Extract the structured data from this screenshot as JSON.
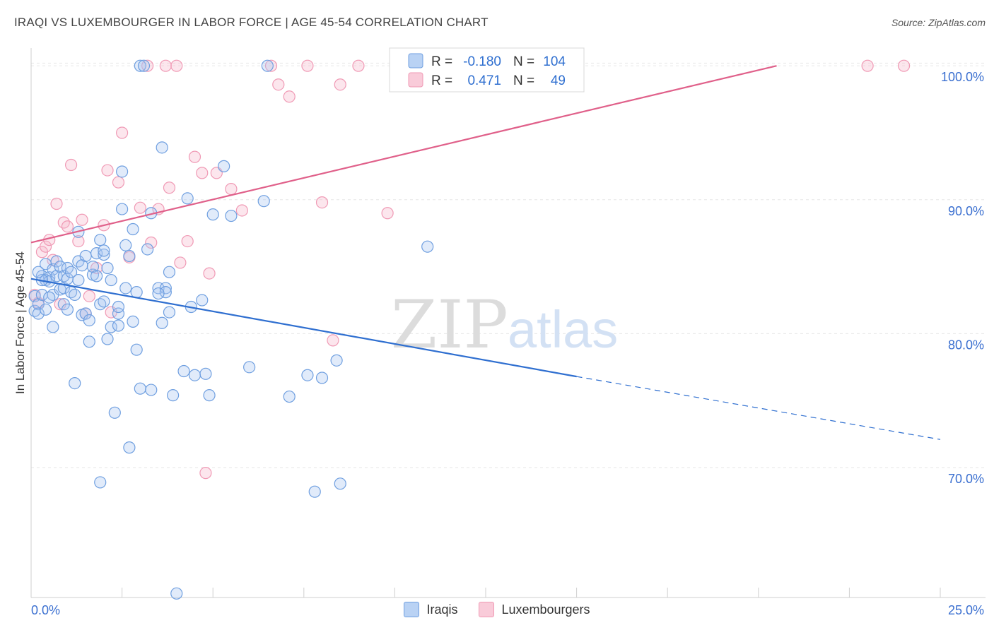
{
  "header": {
    "title": "IRAQI VS LUXEMBOURGER IN LABOR FORCE | AGE 45-54 CORRELATION CHART",
    "source": "Source: ZipAtlas.com"
  },
  "watermark": {
    "zip": "ZIP",
    "atlas": "atlas"
  },
  "legend_box": {
    "rows": [
      {
        "r_label": "R =",
        "r_value": "-0.180",
        "n_label": "N =",
        "n_value": "104"
      },
      {
        "r_label": "R =",
        "r_value": "0.471",
        "n_label": "N =",
        "n_value": "49"
      }
    ]
  },
  "chart_data": {
    "type": "scatter",
    "title": "IRAQI VS LUXEMBOURGER IN LABOR FORCE | AGE 45-54 CORRELATION CHART",
    "xlabel": "",
    "ylabel": "In Labor Force | Age 45-54",
    "xlim": [
      0,
      25
    ],
    "ylim": [
      60.3,
      100.8
    ],
    "x_tick_labels": [
      "0.0%",
      "25.0%"
    ],
    "y_ticks": [
      70,
      80,
      90,
      100
    ],
    "y_tick_labels": [
      "70.0%",
      "80.0%",
      "90.0%",
      "100.0%"
    ],
    "grid": true,
    "legend_position": "bottom",
    "colors": {
      "iraqis": "#6f9fe0",
      "iraqis_line": "#2f6fd0",
      "luxembourgers": "#f09ab5",
      "luxembourgers_line": "#e0608a",
      "tick_text": "#3a6fd0"
    },
    "series": [
      {
        "name": "Iraqis",
        "r": -0.18,
        "n": 104,
        "trend": {
          "x0": 0,
          "y0": 84.1,
          "x1": 15,
          "y1": 76.8,
          "dash_x1": 25,
          "dash_y1": 72.1
        },
        "points": [
          [
            0.1,
            82.8
          ],
          [
            0.1,
            81.7
          ],
          [
            0.2,
            82.2
          ],
          [
            0.2,
            81.5
          ],
          [
            0.3,
            82.9
          ],
          [
            0.3,
            84.3
          ],
          [
            0.4,
            84.0
          ],
          [
            0.4,
            85.2
          ],
          [
            0.5,
            84.2
          ],
          [
            0.5,
            83.9
          ],
          [
            0.6,
            84.8
          ],
          [
            0.6,
            82.9
          ],
          [
            0.7,
            84.3
          ],
          [
            0.7,
            85.4
          ],
          [
            0.8,
            83.3
          ],
          [
            0.8,
            85.0
          ],
          [
            0.9,
            84.3
          ],
          [
            0.9,
            83.4
          ],
          [
            1.0,
            84.9
          ],
          [
            1.0,
            84.1
          ],
          [
            1.1,
            83.1
          ],
          [
            1.1,
            84.6
          ],
          [
            1.2,
            82.9
          ],
          [
            1.3,
            87.6
          ],
          [
            1.3,
            85.4
          ],
          [
            1.4,
            81.4
          ],
          [
            1.4,
            85.1
          ],
          [
            1.5,
            81.5
          ],
          [
            1.5,
            85.8
          ],
          [
            1.6,
            79.4
          ],
          [
            1.6,
            81.0
          ],
          [
            1.7,
            84.4
          ],
          [
            1.7,
            85.0
          ],
          [
            1.8,
            84.3
          ],
          [
            1.8,
            86.0
          ],
          [
            1.9,
            82.2
          ],
          [
            1.9,
            87.0
          ],
          [
            2.0,
            85.9
          ],
          [
            2.0,
            86.2
          ],
          [
            2.1,
            79.6
          ],
          [
            2.1,
            84.9
          ],
          [
            2.2,
            80.5
          ],
          [
            2.2,
            84.0
          ],
          [
            2.3,
            74.1
          ],
          [
            2.4,
            81.5
          ],
          [
            2.4,
            80.6
          ],
          [
            2.5,
            89.3
          ],
          [
            2.5,
            92.1
          ],
          [
            2.6,
            86.6
          ],
          [
            2.6,
            83.4
          ],
          [
            2.7,
            71.5
          ],
          [
            2.7,
            85.8
          ],
          [
            2.8,
            87.8
          ],
          [
            2.8,
            80.9
          ],
          [
            2.9,
            78.8
          ],
          [
            2.9,
            83.1
          ],
          [
            3.0,
            75.9
          ],
          [
            3.0,
            100.0
          ],
          [
            3.1,
            100.0
          ],
          [
            3.3,
            75.8
          ],
          [
            3.3,
            89.0
          ],
          [
            3.5,
            83.4
          ],
          [
            3.6,
            80.8
          ],
          [
            3.7,
            83.4
          ],
          [
            3.7,
            83.1
          ],
          [
            3.8,
            84.6
          ],
          [
            3.8,
            81.6
          ],
          [
            3.9,
            75.4
          ],
          [
            4.0,
            60.6
          ],
          [
            4.2,
            77.2
          ],
          [
            4.3,
            90.1
          ],
          [
            4.4,
            82.0
          ],
          [
            4.5,
            76.9
          ],
          [
            4.7,
            82.5
          ],
          [
            4.8,
            77.0
          ],
          [
            4.9,
            75.4
          ],
          [
            5.0,
            88.9
          ],
          [
            5.3,
            92.5
          ],
          [
            5.5,
            88.8
          ],
          [
            6.0,
            77.5
          ],
          [
            6.4,
            89.9
          ],
          [
            6.5,
            100.0
          ],
          [
            7.1,
            75.3
          ],
          [
            7.6,
            76.9
          ],
          [
            7.8,
            68.2
          ],
          [
            8.0,
            76.7
          ],
          [
            8.4,
            78.0
          ],
          [
            8.5,
            68.8
          ],
          [
            10.9,
            86.5
          ],
          [
            0.3,
            84.0
          ],
          [
            0.5,
            82.7
          ],
          [
            0.9,
            82.2
          ],
          [
            1.2,
            76.3
          ],
          [
            1.3,
            84.0
          ],
          [
            1.9,
            68.9
          ],
          [
            2.0,
            82.4
          ],
          [
            2.4,
            82.0
          ],
          [
            3.2,
            86.3
          ],
          [
            0.4,
            81.8
          ],
          [
            0.2,
            84.6
          ],
          [
            0.6,
            80.5
          ],
          [
            1.0,
            81.8
          ],
          [
            3.5,
            83.0
          ],
          [
            3.6,
            93.9
          ]
        ]
      },
      {
        "name": "Luxembourgers",
        "r": 0.471,
        "n": 49,
        "trend": {
          "x0": 0,
          "y0": 86.8,
          "x1": 20.5,
          "y1": 100.0
        },
        "points": [
          [
            0.1,
            82.9
          ],
          [
            0.2,
            82.3
          ],
          [
            0.3,
            86.1
          ],
          [
            0.4,
            86.5
          ],
          [
            0.5,
            87.0
          ],
          [
            0.6,
            85.5
          ],
          [
            0.7,
            89.7
          ],
          [
            0.8,
            82.2
          ],
          [
            0.9,
            88.3
          ],
          [
            1.0,
            88.0
          ],
          [
            1.1,
            92.6
          ],
          [
            1.3,
            86.9
          ],
          [
            1.4,
            88.5
          ],
          [
            1.5,
            81.5
          ],
          [
            1.6,
            82.8
          ],
          [
            1.8,
            84.9
          ],
          [
            2.0,
            88.1
          ],
          [
            2.1,
            92.2
          ],
          [
            2.2,
            81.6
          ],
          [
            2.4,
            91.3
          ],
          [
            2.5,
            95.0
          ],
          [
            2.7,
            85.7
          ],
          [
            3.0,
            89.4
          ],
          [
            3.2,
            100.0
          ],
          [
            3.3,
            86.8
          ],
          [
            3.5,
            89.3
          ],
          [
            3.7,
            100.0
          ],
          [
            3.8,
            90.9
          ],
          [
            4.0,
            100.0
          ],
          [
            4.1,
            85.3
          ],
          [
            4.3,
            86.9
          ],
          [
            4.5,
            93.2
          ],
          [
            4.7,
            92.0
          ],
          [
            4.8,
            69.6
          ],
          [
            4.9,
            84.5
          ],
          [
            5.1,
            92.0
          ],
          [
            5.5,
            90.8
          ],
          [
            5.8,
            89.2
          ],
          [
            6.6,
            100.0
          ],
          [
            6.8,
            98.6
          ],
          [
            7.1,
            97.7
          ],
          [
            7.6,
            100.0
          ],
          [
            8.0,
            89.8
          ],
          [
            8.5,
            98.6
          ],
          [
            9.0,
            100.0
          ],
          [
            9.8,
            89.0
          ],
          [
            23.0,
            100.0
          ],
          [
            24.0,
            100.0
          ],
          [
            8.3,
            79.5
          ]
        ]
      }
    ]
  },
  "legend_bottom": {
    "items": [
      "Iraqis",
      "Luxembourgers"
    ]
  }
}
